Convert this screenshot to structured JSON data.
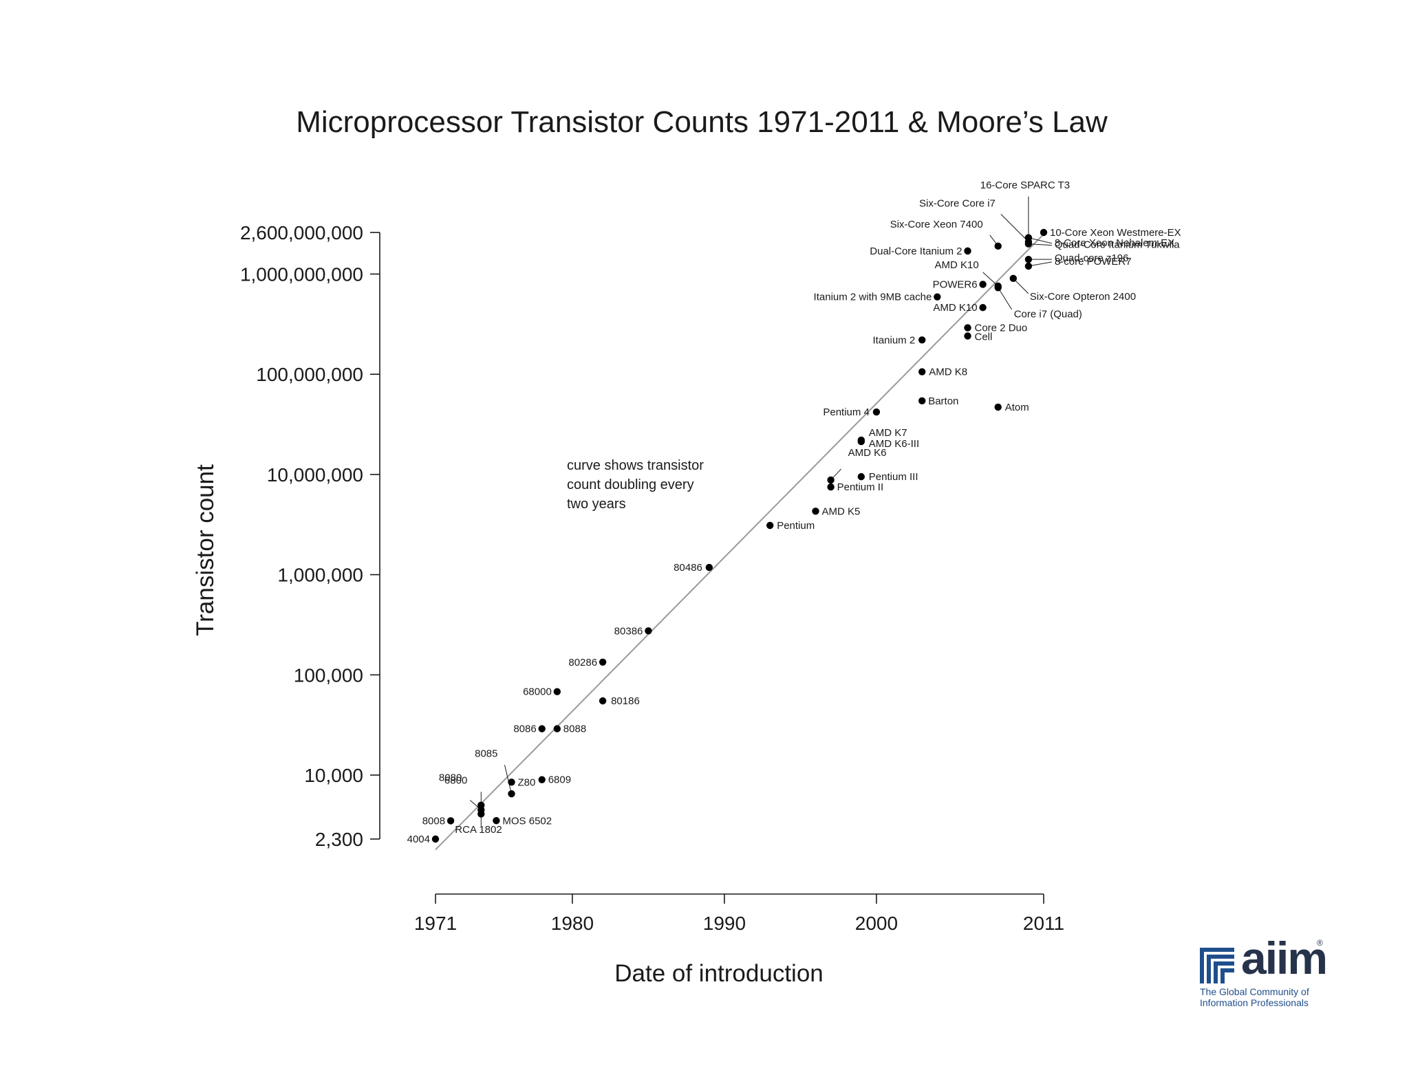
{
  "chart_data": {
    "type": "scatter",
    "title": "Microprocessor Transistor Counts 1971-2011 & Moore’s Law",
    "xlabel": "Date of introduction",
    "ylabel": "Transistor count",
    "xscale": "linear",
    "yscale": "log",
    "xlim": [
      1971,
      2011
    ],
    "ylim": [
      2300,
      2600000000
    ],
    "xticks": [
      1971,
      1980,
      1990,
      2000,
      2011
    ],
    "xtick_labels": [
      "1971",
      "1980",
      "1990",
      "2000",
      "2011"
    ],
    "yticks": [
      2300,
      10000,
      100000,
      1000000,
      10000000,
      100000000,
      1000000000,
      2600000000
    ],
    "ytick_labels": [
      "2,300",
      "10,000",
      "100,000",
      "1,000,000",
      "10,000,000",
      "100,000,000",
      "1,000,000,000",
      "2,600,000,000"
    ],
    "trend_line": {
      "x": [
        1971,
        2011
      ],
      "y": [
        1800,
        2500000000
      ],
      "description": "curve shows transistor count doubling every two years"
    },
    "annotation": [
      "curve shows transistor",
      "count doubling every",
      "two years"
    ],
    "grid": false,
    "points": [
      {
        "name": "4004",
        "x": 1971,
        "y": 2300
      },
      {
        "name": "8008",
        "x": 1972,
        "y": 3500
      },
      {
        "name": "8080",
        "x": 1974,
        "y": 4500
      },
      {
        "name": "RCA 1802",
        "x": 1974,
        "y": 5000
      },
      {
        "name": "6800",
        "x": 1974,
        "y": 4100
      },
      {
        "name": "8085",
        "x": 1976,
        "y": 6500
      },
      {
        "name": "Z80",
        "x": 1976,
        "y": 8500
      },
      {
        "name": "MOS 6502",
        "x": 1975,
        "y": 3510
      },
      {
        "name": "6809",
        "x": 1978,
        "y": 9000
      },
      {
        "name": "8086",
        "x": 1978,
        "y": 29000
      },
      {
        "name": "8088",
        "x": 1979,
        "y": 29000
      },
      {
        "name": "68000",
        "x": 1979,
        "y": 68000
      },
      {
        "name": "80186",
        "x": 1982,
        "y": 55000
      },
      {
        "name": "80286",
        "x": 1982,
        "y": 134000
      },
      {
        "name": "80386",
        "x": 1985,
        "y": 275000
      },
      {
        "name": "80486",
        "x": 1989,
        "y": 1180000
      },
      {
        "name": "Pentium",
        "x": 1993,
        "y": 3100000
      },
      {
        "name": "AMD K5",
        "x": 1996,
        "y": 4300000
      },
      {
        "name": "Pentium II",
        "x": 1997,
        "y": 7500000
      },
      {
        "name": "AMD K6",
        "x": 1997,
        "y": 8800000
      },
      {
        "name": "Pentium III",
        "x": 1999,
        "y": 9500000
      },
      {
        "name": "AMD K6-III",
        "x": 1999,
        "y": 21300000
      },
      {
        "name": "AMD K7",
        "x": 1999,
        "y": 22000000
      },
      {
        "name": "Pentium 4",
        "x": 2000,
        "y": 42000000
      },
      {
        "name": "Barton",
        "x": 2003,
        "y": 54300000
      },
      {
        "name": "AMD K8",
        "x": 2003,
        "y": 105900000
      },
      {
        "name": "Itanium 2",
        "x": 2003,
        "y": 220000000
      },
      {
        "name": "Atom",
        "x": 2008,
        "y": 47000000
      },
      {
        "name": "Cell",
        "x": 2006,
        "y": 241000000
      },
      {
        "name": "Core 2 Duo",
        "x": 2006,
        "y": 291000000
      },
      {
        "name": "AMD K10",
        "x": 2007,
        "y": 463000000
      },
      {
        "name": "Itanium 2 with 9MB cache",
        "x": 2004,
        "y": 592000000
      },
      {
        "name": "POWER6",
        "x": 2007,
        "y": 789000000
      },
      {
        "name": "AMD K10",
        "x": 2008,
        "y": 758000000
      },
      {
        "name": "Core i7 (Quad)",
        "x": 2008,
        "y": 731000000
      },
      {
        "name": "Six-Core Opteron 2400",
        "x": 2009,
        "y": 904000000
      },
      {
        "name": "Dual-Core Itanium 2",
        "x": 2006,
        "y": 1700000000
      },
      {
        "name": "Six-Core Xeon 7400",
        "x": 2008,
        "y": 1900000000
      },
      {
        "name": "Six-Core Core i7",
        "x": 2010,
        "y": 2100000000
      },
      {
        "name": "16-Core SPARC T3",
        "x": 2010,
        "y": 2300000000
      },
      {
        "name": "10-Core Xeon Westmere-EX",
        "x": 2011,
        "y": 2600000000
      },
      {
        "name": "8-core POWER7",
        "x": 2010,
        "y": 1200000000
      },
      {
        "name": "Quad-core z196",
        "x": 2010,
        "y": 1400000000
      },
      {
        "name": "Quad-Core Itanium Tukwila",
        "x": 2010,
        "y": 2000000000
      },
      {
        "name": "8-Core Xeon Nehalem-EX",
        "x": 2010,
        "y": 2300000000
      }
    ]
  },
  "logo": {
    "word": "aiim",
    "registered": "®",
    "tagline_line1": "The Global Community of",
    "tagline_line2": "Information Professionals",
    "color_brand": "#27334a",
    "color_accent": "#1f4e8c"
  }
}
